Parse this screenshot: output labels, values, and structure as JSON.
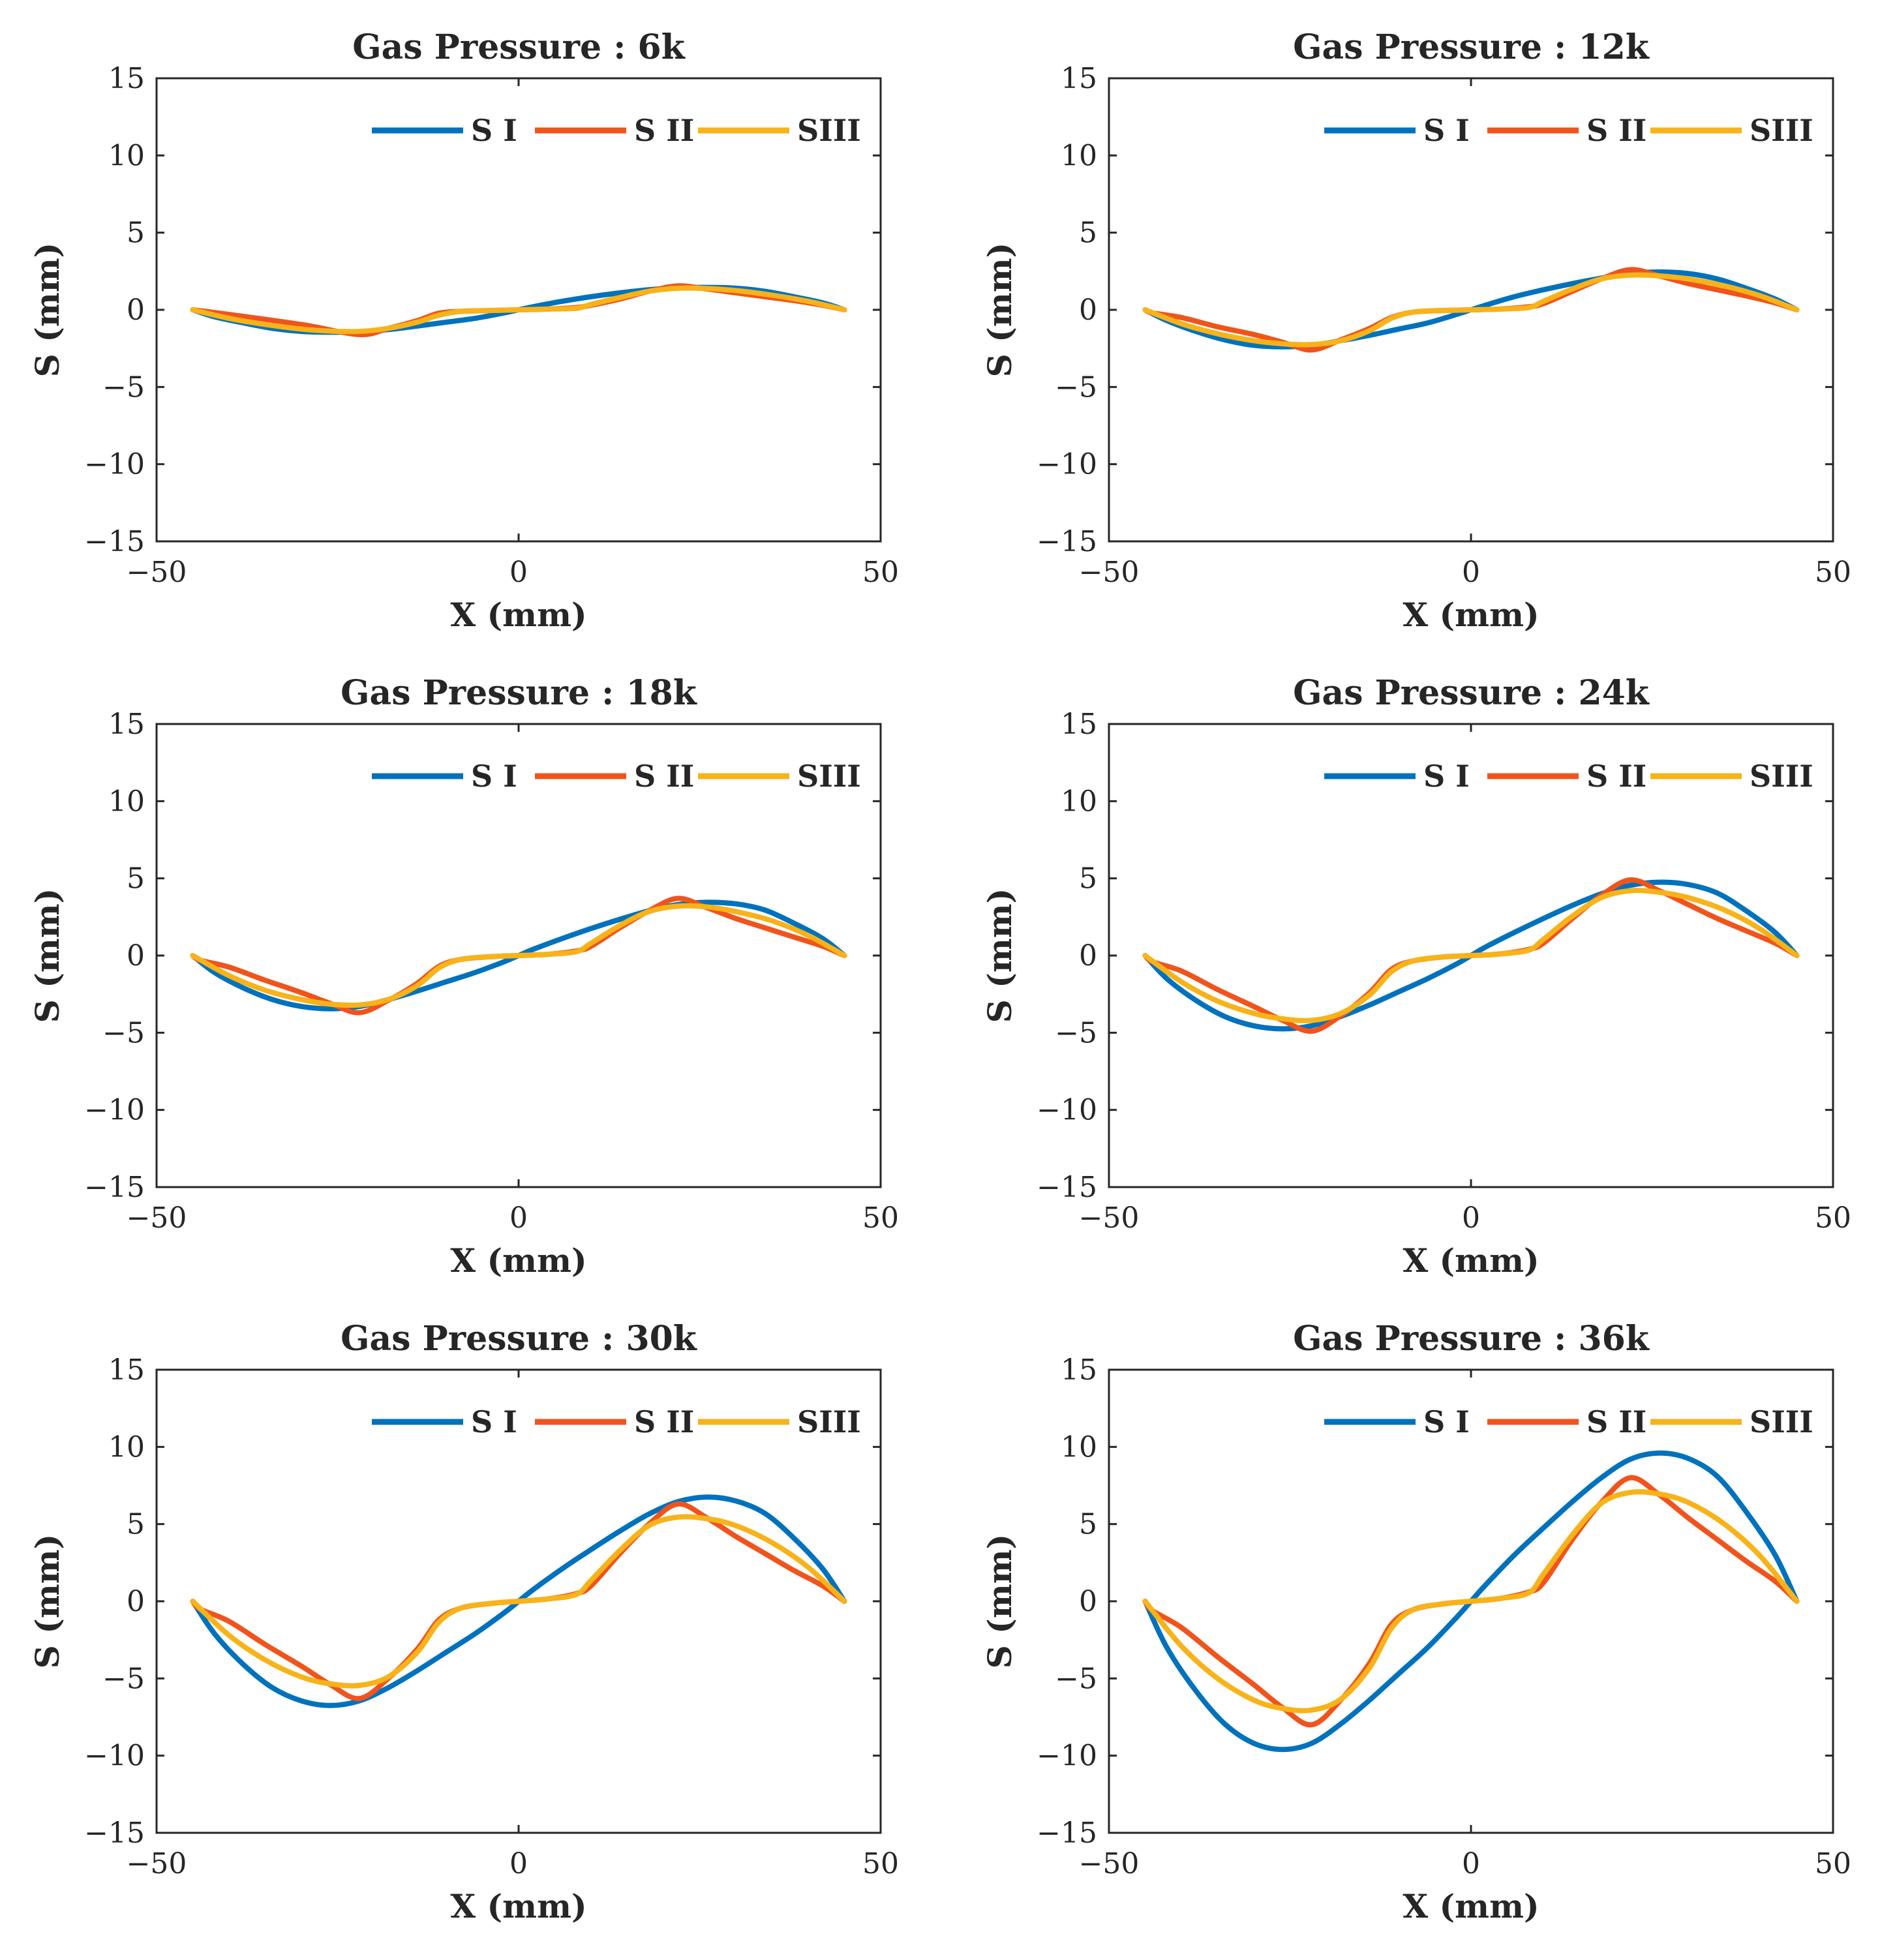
{
  "colors": {
    "SI": "#0072BD",
    "SII": "#F0541C",
    "SIII": "#F7B319",
    "axis": "#262626"
  },
  "chart_data": [
    {
      "type": "line",
      "title": "Gas Pressure : 6k",
      "xlabel": "X (mm)",
      "ylabel": "S (mm)",
      "xlim": [
        -50,
        50
      ],
      "ylim": [
        -15,
        15
      ],
      "xticks": [
        -50,
        0,
        50
      ],
      "yticks": [
        -15,
        -10,
        -5,
        0,
        5,
        10,
        15
      ],
      "legend": [
        "S I",
        "S II",
        "SIII"
      ],
      "legend_position": "top-right",
      "series": [
        {
          "name": "S I",
          "x": [
            -45,
            -42,
            -38,
            -34,
            -30,
            -26,
            -22,
            -18,
            -14,
            -10,
            -6,
            -2,
            0,
            2,
            6,
            10,
            14,
            18,
            22,
            26,
            30,
            34,
            38,
            42,
            45
          ],
          "y": [
            0,
            -0.45,
            -0.85,
            -1.2,
            -1.4,
            -1.45,
            -1.42,
            -1.28,
            -1.05,
            -0.8,
            -0.55,
            -0.2,
            0,
            0.2,
            0.55,
            0.85,
            1.1,
            1.3,
            1.42,
            1.45,
            1.4,
            1.2,
            0.85,
            0.45,
            0
          ]
        },
        {
          "name": "S II",
          "x": [
            -45,
            -40,
            -30,
            -22,
            -18,
            -14,
            -11,
            -8,
            -4,
            0,
            4,
            8,
            10,
            14,
            18,
            22,
            26,
            30,
            34,
            38,
            42,
            45
          ],
          "y": [
            0,
            -0.3,
            -0.95,
            -1.6,
            -1.2,
            -0.7,
            -0.22,
            -0.1,
            -0.05,
            0,
            0.05,
            0.15,
            0.3,
            0.7,
            1.2,
            1.55,
            1.35,
            1.1,
            0.85,
            0.6,
            0.3,
            0
          ]
        },
        {
          "name": "SIII",
          "x": [
            -45,
            -40,
            -35,
            -30,
            -26,
            -22,
            -18,
            -14,
            -11,
            -8,
            -4,
            0,
            4,
            8,
            10,
            14,
            18,
            22,
            26,
            30,
            35,
            40,
            45
          ],
          "y": [
            0,
            -0.55,
            -0.95,
            -1.25,
            -1.38,
            -1.4,
            -1.2,
            -0.8,
            -0.35,
            -0.1,
            -0.05,
            0,
            0.05,
            0.1,
            0.35,
            0.8,
            1.2,
            1.4,
            1.38,
            1.25,
            0.95,
            0.55,
            0
          ]
        }
      ]
    },
    {
      "type": "line",
      "title": "Gas Pressure : 12k",
      "xlabel": "X (mm)",
      "ylabel": "S (mm)",
      "xlim": [
        -50,
        50
      ],
      "ylim": [
        -15,
        15
      ],
      "xticks": [
        -50,
        0,
        50
      ],
      "yticks": [
        -15,
        -10,
        -5,
        0,
        5,
        10,
        15
      ],
      "legend": [
        "S I",
        "S II",
        "SIII"
      ],
      "legend_position": "top-right",
      "series": [
        {
          "name": "S I",
          "x": [
            -45,
            -42,
            -38,
            -34,
            -30,
            -26,
            -22,
            -18,
            -14,
            -10,
            -6,
            -2,
            0,
            2,
            6,
            10,
            14,
            18,
            22,
            26,
            30,
            34,
            38,
            42,
            45
          ],
          "y": [
            0,
            -0.7,
            -1.4,
            -1.95,
            -2.3,
            -2.4,
            -2.3,
            -2.0,
            -1.65,
            -1.25,
            -0.85,
            -0.3,
            0,
            0.3,
            0.85,
            1.3,
            1.7,
            2.05,
            2.35,
            2.45,
            2.35,
            2.0,
            1.4,
            0.7,
            0
          ]
        },
        {
          "name": "S II",
          "x": [
            -45,
            -44,
            -40,
            -35,
            -30,
            -26,
            -22,
            -18,
            -14,
            -11,
            -8,
            -4,
            0,
            4,
            8,
            10,
            14,
            18,
            22,
            26,
            30,
            34,
            38,
            42,
            45
          ],
          "y": [
            0,
            -0.2,
            -0.5,
            -1.1,
            -1.6,
            -2.1,
            -2.6,
            -1.95,
            -1.2,
            -0.5,
            -0.15,
            -0.05,
            0,
            0.05,
            0.2,
            0.4,
            1.2,
            2.0,
            2.6,
            2.2,
            1.7,
            1.3,
            0.9,
            0.45,
            0
          ]
        },
        {
          "name": "SIII",
          "x": [
            -45,
            -40,
            -35,
            -30,
            -26,
            -22,
            -18,
            -14,
            -11,
            -8,
            -4,
            0,
            4,
            8,
            10,
            14,
            18,
            22,
            26,
            30,
            35,
            40,
            45
          ],
          "y": [
            0,
            -0.9,
            -1.55,
            -2.0,
            -2.2,
            -2.25,
            -2.0,
            -1.35,
            -0.55,
            -0.15,
            -0.05,
            0,
            0.05,
            0.15,
            0.55,
            1.35,
            2.0,
            2.25,
            2.2,
            2.0,
            1.55,
            0.9,
            0
          ]
        }
      ]
    },
    {
      "type": "line",
      "title": "Gas Pressure : 18k",
      "xlabel": "X (mm)",
      "ylabel": "S (mm)",
      "xlim": [
        -50,
        50
      ],
      "ylim": [
        -15,
        15
      ],
      "xticks": [
        -50,
        0,
        50
      ],
      "yticks": [
        -15,
        -10,
        -5,
        0,
        5,
        10,
        15
      ],
      "legend": [
        "S I",
        "S II",
        "SIII"
      ],
      "legend_position": "top-right",
      "series": [
        {
          "name": "S I",
          "x": [
            -45,
            -42,
            -38,
            -34,
            -30,
            -26,
            -22,
            -18,
            -14,
            -10,
            -6,
            -2,
            0,
            2,
            6,
            10,
            14,
            18,
            22,
            26,
            30,
            34,
            38,
            42,
            45
          ],
          "y": [
            0,
            -1.1,
            -2.1,
            -2.85,
            -3.3,
            -3.45,
            -3.3,
            -2.85,
            -2.3,
            -1.7,
            -1.1,
            -0.4,
            0,
            0.4,
            1.1,
            1.75,
            2.35,
            2.9,
            3.3,
            3.45,
            3.35,
            2.95,
            2.1,
            1.1,
            0
          ]
        },
        {
          "name": "S II",
          "x": [
            -45,
            -44,
            -40,
            -35,
            -30,
            -26,
            -22,
            -18,
            -14,
            -11,
            -8,
            -4,
            0,
            4,
            8,
            10,
            14,
            18,
            22,
            26,
            30,
            34,
            38,
            42,
            45
          ],
          "y": [
            0,
            -0.3,
            -0.75,
            -1.6,
            -2.4,
            -3.1,
            -3.7,
            -2.9,
            -1.8,
            -0.7,
            -0.25,
            -0.08,
            0,
            0.08,
            0.3,
            0.6,
            1.8,
            2.9,
            3.7,
            3.1,
            2.4,
            1.8,
            1.2,
            0.6,
            0
          ]
        },
        {
          "name": "SIII",
          "x": [
            -45,
            -40,
            -35,
            -30,
            -26,
            -22,
            -18,
            -14,
            -11,
            -8,
            -4,
            0,
            4,
            8,
            10,
            14,
            18,
            22,
            26,
            30,
            35,
            40,
            45
          ],
          "y": [
            0,
            -1.3,
            -2.25,
            -2.85,
            -3.15,
            -3.2,
            -2.85,
            -1.95,
            -0.8,
            -0.25,
            -0.08,
            0,
            0.08,
            0.25,
            0.8,
            1.95,
            2.85,
            3.2,
            3.15,
            2.85,
            2.25,
            1.3,
            0
          ]
        }
      ]
    },
    {
      "type": "line",
      "title": "Gas Pressure : 24k",
      "xlabel": "X (mm)",
      "ylabel": "S (mm)",
      "xlim": [
        -50,
        50
      ],
      "ylim": [
        -15,
        15
      ],
      "xticks": [
        -50,
        0,
        50
      ],
      "yticks": [
        -15,
        -10,
        -5,
        0,
        5,
        10,
        15
      ],
      "legend": [
        "S I",
        "S II",
        "SIII"
      ],
      "legend_position": "top-right",
      "series": [
        {
          "name": "S I",
          "x": [
            -45,
            -42,
            -38,
            -34,
            -30,
            -26,
            -22,
            -18,
            -14,
            -10,
            -6,
            -2,
            0,
            2,
            6,
            10,
            14,
            18,
            22,
            26,
            30,
            34,
            38,
            42,
            45
          ],
          "y": [
            0,
            -1.5,
            -2.9,
            -3.95,
            -4.55,
            -4.75,
            -4.55,
            -3.95,
            -3.2,
            -2.35,
            -1.5,
            -0.55,
            0,
            0.55,
            1.5,
            2.4,
            3.25,
            4.0,
            4.55,
            4.75,
            4.6,
            4.05,
            2.9,
            1.5,
            0
          ]
        },
        {
          "name": "S II",
          "x": [
            -45,
            -44,
            -40,
            -35,
            -30,
            -26,
            -22,
            -18,
            -14,
            -11,
            -8,
            -4,
            0,
            4,
            8,
            10,
            14,
            18,
            22,
            26,
            30,
            34,
            38,
            42,
            45
          ],
          "y": [
            0,
            -0.4,
            -1.0,
            -2.2,
            -3.3,
            -4.2,
            -4.9,
            -3.9,
            -2.4,
            -0.9,
            -0.35,
            -0.1,
            0,
            0.1,
            0.4,
            0.8,
            2.4,
            3.9,
            4.9,
            4.2,
            3.3,
            2.4,
            1.6,
            0.8,
            0
          ]
        },
        {
          "name": "SIII",
          "x": [
            -45,
            -40,
            -35,
            -30,
            -26,
            -22,
            -18,
            -14,
            -11,
            -8,
            -4,
            0,
            4,
            8,
            10,
            14,
            18,
            22,
            26,
            30,
            35,
            40,
            45
          ],
          "y": [
            0,
            -1.7,
            -2.95,
            -3.75,
            -4.1,
            -4.2,
            -3.75,
            -2.55,
            -1.05,
            -0.35,
            -0.1,
            0,
            0.1,
            0.35,
            1.05,
            2.55,
            3.75,
            4.2,
            4.1,
            3.75,
            2.95,
            1.7,
            0
          ]
        }
      ]
    },
    {
      "type": "line",
      "title": "Gas Pressure : 30k",
      "xlabel": "X (mm)",
      "ylabel": "S (mm)",
      "xlim": [
        -50,
        50
      ],
      "ylim": [
        -15,
        15
      ],
      "xticks": [
        -50,
        0,
        50
      ],
      "yticks": [
        -15,
        -10,
        -5,
        0,
        5,
        10,
        15
      ],
      "legend": [
        "S I",
        "S II",
        "SIII"
      ],
      "legend_position": "top-right",
      "series": [
        {
          "name": "S I",
          "x": [
            -45,
            -42,
            -38,
            -34,
            -30,
            -26,
            -22,
            -18,
            -14,
            -10,
            -6,
            -2,
            0,
            2,
            6,
            10,
            14,
            18,
            22,
            26,
            30,
            34,
            38,
            42,
            45
          ],
          "y": [
            0,
            -2.1,
            -4.1,
            -5.6,
            -6.45,
            -6.75,
            -6.45,
            -5.6,
            -4.5,
            -3.3,
            -2.1,
            -0.75,
            0,
            0.75,
            2.1,
            3.35,
            4.55,
            5.65,
            6.45,
            6.75,
            6.5,
            5.7,
            4.1,
            2.1,
            0
          ]
        },
        {
          "name": "S II",
          "x": [
            -45,
            -44,
            -40,
            -35,
            -30,
            -26,
            -22,
            -18,
            -14,
            -11,
            -8,
            -4,
            0,
            4,
            8,
            10,
            14,
            18,
            22,
            26,
            30,
            34,
            38,
            42,
            45
          ],
          "y": [
            0,
            -0.5,
            -1.3,
            -2.8,
            -4.2,
            -5.4,
            -6.3,
            -5.0,
            -3.1,
            -1.2,
            -0.45,
            -0.15,
            0,
            0.15,
            0.5,
            1.0,
            3.1,
            5.0,
            6.3,
            5.4,
            4.2,
            3.1,
            2.0,
            1.0,
            0
          ]
        },
        {
          "name": "SIII",
          "x": [
            -45,
            -40,
            -35,
            -30,
            -26,
            -22,
            -18,
            -14,
            -11,
            -8,
            -4,
            0,
            4,
            8,
            10,
            14,
            18,
            22,
            26,
            30,
            35,
            40,
            45
          ],
          "y": [
            0,
            -2.2,
            -3.8,
            -4.9,
            -5.35,
            -5.45,
            -4.9,
            -3.3,
            -1.35,
            -0.45,
            -0.15,
            0,
            0.15,
            0.45,
            1.35,
            3.3,
            4.9,
            5.45,
            5.35,
            4.9,
            3.8,
            2.2,
            0
          ]
        }
      ]
    },
    {
      "type": "line",
      "title": "Gas Pressure : 36k",
      "xlabel": "X (mm)",
      "ylabel": "S (mm)",
      "xlim": [
        -50,
        50
      ],
      "ylim": [
        -15,
        15
      ],
      "xticks": [
        -50,
        0,
        50
      ],
      "yticks": [
        -15,
        -10,
        -5,
        0,
        5,
        10,
        15
      ],
      "legend": [
        "S I",
        "S II",
        "SIII"
      ],
      "legend_position": "top-right",
      "series": [
        {
          "name": "S I",
          "x": [
            -45,
            -42,
            -38,
            -34,
            -30,
            -26,
            -22,
            -18,
            -14,
            -10,
            -6,
            -2,
            0,
            2,
            6,
            10,
            14,
            18,
            22,
            26,
            30,
            34,
            38,
            42,
            45
          ],
          "y": [
            0,
            -3.0,
            -5.8,
            -7.95,
            -9.2,
            -9.6,
            -9.2,
            -7.95,
            -6.4,
            -4.7,
            -3.0,
            -1.05,
            0,
            1.05,
            3.0,
            4.75,
            6.45,
            8.0,
            9.2,
            9.6,
            9.25,
            8.1,
            5.8,
            3.0,
            0
          ]
        },
        {
          "name": "S II",
          "x": [
            -45,
            -44,
            -40,
            -35,
            -30,
            -26,
            -22,
            -18,
            -14,
            -11,
            -8,
            -4,
            0,
            4,
            8,
            10,
            14,
            18,
            22,
            26,
            30,
            34,
            38,
            42,
            45
          ],
          "y": [
            0,
            -0.6,
            -1.7,
            -3.6,
            -5.4,
            -6.9,
            -8.0,
            -6.4,
            -4.0,
            -1.5,
            -0.55,
            -0.18,
            0,
            0.18,
            0.6,
            1.2,
            4.0,
            6.4,
            8.0,
            6.9,
            5.4,
            4.0,
            2.6,
            1.3,
            0
          ]
        },
        {
          "name": "SIII",
          "x": [
            -45,
            -40,
            -35,
            -30,
            -26,
            -22,
            -18,
            -14,
            -11,
            -8,
            -4,
            0,
            4,
            8,
            10,
            14,
            18,
            22,
            26,
            30,
            35,
            40,
            45
          ],
          "y": [
            0,
            -2.9,
            -5.0,
            -6.4,
            -6.95,
            -7.05,
            -6.35,
            -4.3,
            -1.75,
            -0.55,
            -0.18,
            0,
            0.18,
            0.55,
            1.75,
            4.3,
            6.35,
            7.05,
            6.95,
            6.4,
            5.0,
            2.9,
            0
          ]
        }
      ]
    }
  ]
}
